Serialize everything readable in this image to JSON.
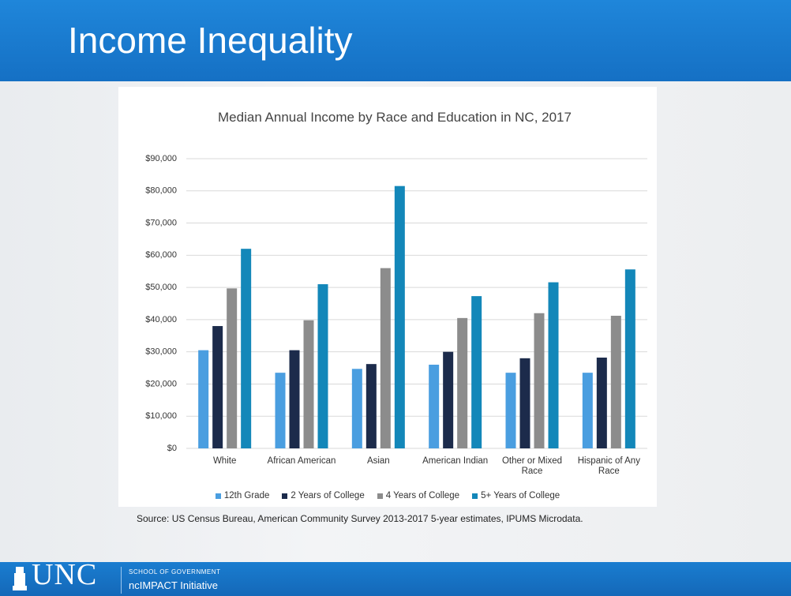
{
  "header": {
    "title": "Income Inequality"
  },
  "chart_data": {
    "type": "bar",
    "title": "Median Annual Income by Race and Education in NC, 2017",
    "categories": [
      "White",
      "African American",
      "Asian",
      "American Indian",
      "Other or Mixed Race",
      "Hispanic of Any Race"
    ],
    "series": [
      {
        "name": "12th Grade",
        "color": "#4a9ee0",
        "values": [
          30500,
          23500,
          24700,
          26000,
          23500,
          23500
        ]
      },
      {
        "name": "2 Years of College",
        "color": "#1c2b4b",
        "values": [
          38000,
          30500,
          26200,
          30000,
          28000,
          28200
        ]
      },
      {
        "name": "4 Years of College",
        "color": "#8c8c8c",
        "values": [
          49700,
          39800,
          56000,
          40500,
          42000,
          41200
        ]
      },
      {
        "name": "5+ Years of College",
        "color": "#1387b9",
        "values": [
          62000,
          51000,
          81500,
          47300,
          51600,
          55600
        ]
      }
    ],
    "ylim": [
      0,
      90000
    ],
    "yticks": [
      {
        "value": 0,
        "label": "$0"
      },
      {
        "value": 10000,
        "label": "$10,000"
      },
      {
        "value": 20000,
        "label": "$20,000"
      },
      {
        "value": 30000,
        "label": "$30,000"
      },
      {
        "value": 40000,
        "label": "$40,000"
      },
      {
        "value": 50000,
        "label": "$50,000"
      },
      {
        "value": 60000,
        "label": "$60,000"
      },
      {
        "value": 70000,
        "label": "$70,000"
      },
      {
        "value": 80000,
        "label": "$80,000"
      },
      {
        "value": 90000,
        "label": "$90,000"
      }
    ],
    "grid": true,
    "legend": "bottom"
  },
  "source": "Source: US Census Bureau, American Community Survey 2013-2017 5-year estimates, IPUMS Microdata.",
  "footer": {
    "logo": "UNC",
    "school": "SCHOOL OF GOVERNMENT",
    "initiative": "ncIMPACT Initiative"
  }
}
